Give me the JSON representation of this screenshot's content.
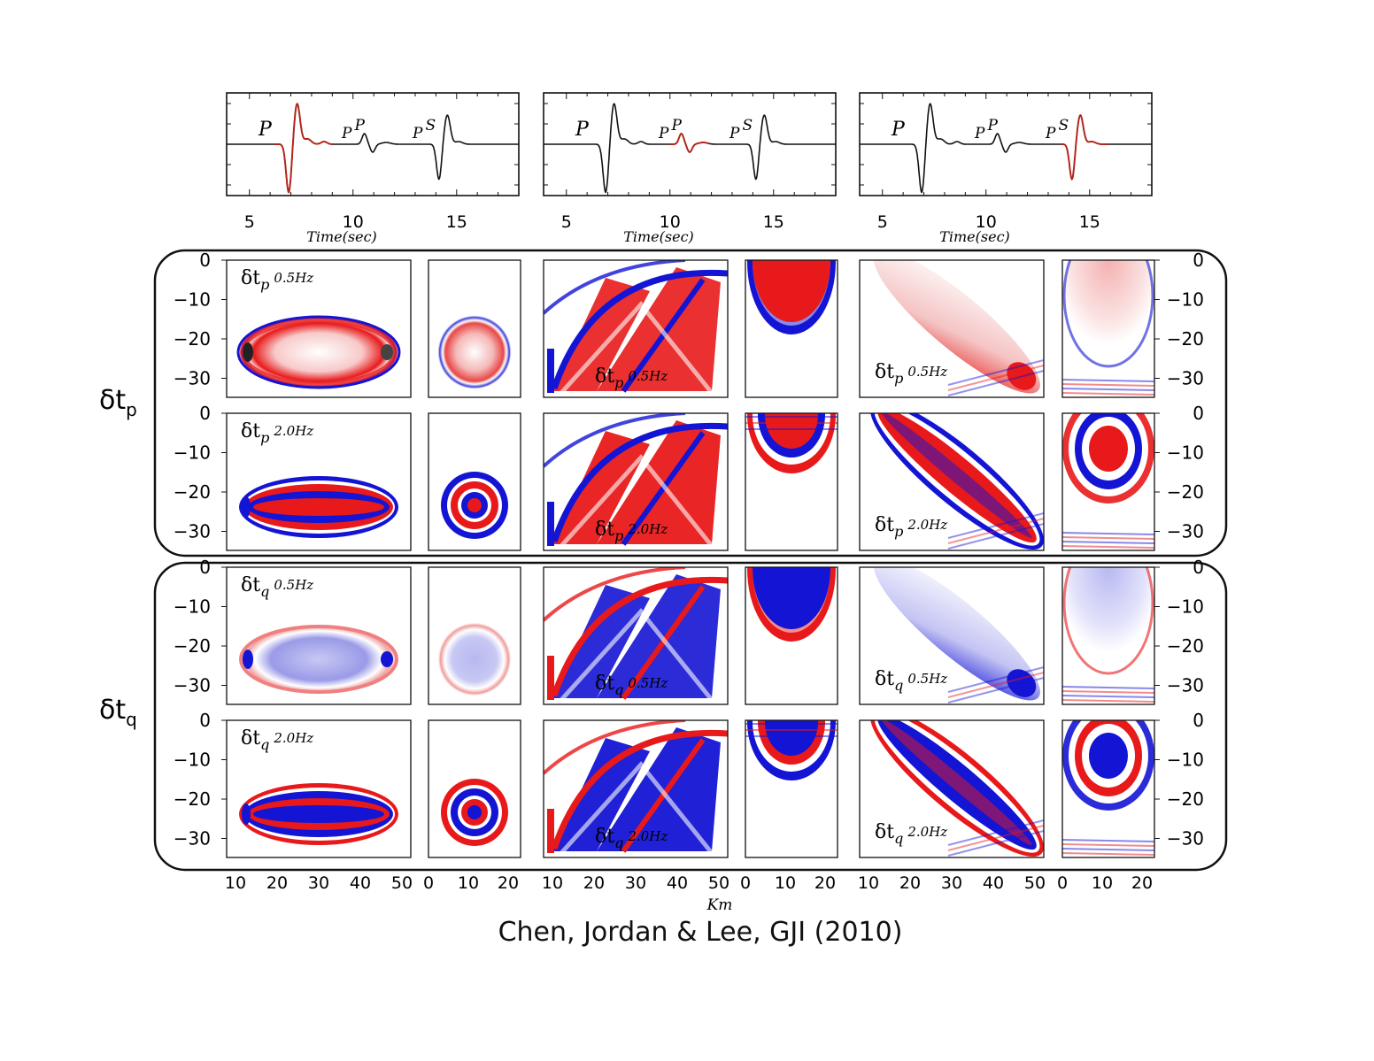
{
  "seismograms": [
    {
      "highlight": "P"
    },
    {
      "highlight": "pP"
    },
    {
      "highlight": "pS"
    }
  ],
  "seismogram_labels": {
    "p": "P",
    "pp_base": "P",
    "pp_sup": "P",
    "ps_base": "P",
    "ps_sup": "S"
  },
  "time_axis": {
    "label": "Time(sec)",
    "ticks": [
      "5",
      "10",
      "15"
    ]
  },
  "row_labels": {
    "delta": "δt",
    "p_sub": "p",
    "q_sub": "q"
  },
  "panel_labels": [
    {
      "kind": "p",
      "freq": "0.5Hz"
    },
    {
      "kind": "p",
      "freq": "2.0Hz"
    },
    {
      "kind": "q",
      "freq": "0.5Hz"
    },
    {
      "kind": "q",
      "freq": "2.0Hz"
    }
  ],
  "depth_ticks": [
    "0",
    "−10",
    "−20",
    "−30"
  ],
  "x_ticks_wide": [
    "10",
    "20",
    "30",
    "40",
    "50"
  ],
  "x_ticks_narrow": [
    "0",
    "10",
    "20"
  ],
  "x_axis_label": "Km",
  "colors": {
    "positive": "#e8191a",
    "negative": "#1414d4",
    "trace": "#111111",
    "highlight": "#b5241a"
  },
  "citation": "Chen, Jordan & Lee, GJI (2010)"
}
